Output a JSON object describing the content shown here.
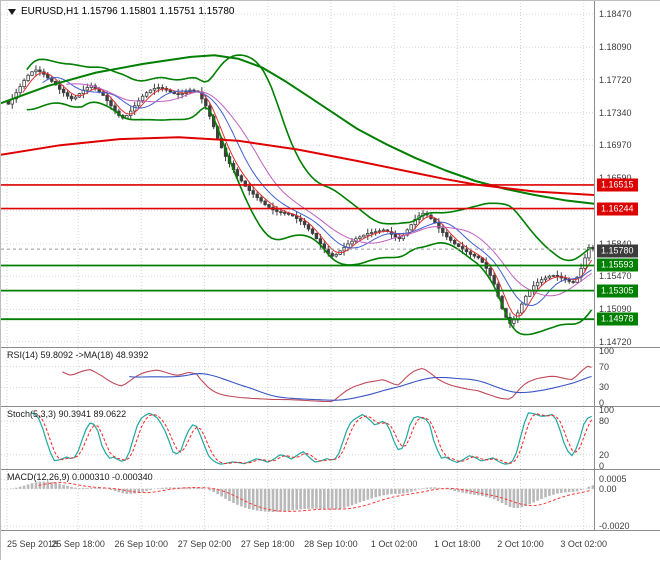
{
  "window": {
    "title": "EURUSD,H1 1.15796 1.15801 1.15751 1.15780"
  },
  "chart_data": {
    "type": "candlestick",
    "symbol": "EURUSD",
    "timeframe": "H1",
    "ohlc_header": {
      "open": "1.15796",
      "high": "1.15801",
      "low": "1.15751",
      "close": "1.15780"
    },
    "closes": [
      1.1744,
      1.175,
      1.1757,
      1.1764,
      1.1771,
      1.1777,
      1.1781,
      1.1783,
      1.1781,
      1.1778,
      1.1774,
      1.177,
      1.1766,
      1.1761,
      1.1757,
      1.1753,
      1.175,
      1.1752,
      1.1756,
      1.176,
      1.1763,
      1.1765,
      1.1762,
      1.1758,
      1.1754,
      1.1748,
      1.1742,
      1.1736,
      1.1731,
      1.1728,
      1.1731,
      1.1736,
      1.1742,
      1.1748,
      1.1753,
      1.1757,
      1.176,
      1.1762,
      1.1763,
      1.1762,
      1.176,
      1.1758,
      1.1756,
      1.1755,
      1.1756,
      1.1758,
      1.176,
      1.1759,
      1.1758,
      1.175,
      1.1742,
      1.173,
      1.1718,
      1.1705,
      1.1694,
      1.1684,
      1.1676,
      1.1669,
      1.1662,
      1.1656,
      1.165,
      1.1645,
      1.1641,
      1.1637,
      1.1633,
      1.1629,
      1.1626,
      1.1623,
      1.1621,
      1.162,
      1.1619,
      1.1618,
      1.1616,
      1.1613,
      1.161,
      1.1606,
      1.1601,
      1.1596,
      1.159,
      1.1584,
      1.1578,
      1.1573,
      1.157,
      1.1572,
      1.1576,
      1.158,
      1.1584,
      1.1587,
      1.159,
      1.1592,
      1.1594,
      1.1596,
      1.1597,
      1.1598,
      1.1599,
      1.16,
      1.1598,
      1.1595,
      1.1592,
      1.159,
      1.1594,
      1.16,
      1.1606,
      1.1612,
      1.1616,
      1.1619,
      1.1617,
      1.1613,
      1.1608,
      1.1602,
      1.1597,
      1.1592,
      1.1588,
      1.1584,
      1.1581,
      1.1578,
      1.1575,
      1.1572,
      1.157,
      1.1568,
      1.1563,
      1.1556,
      1.1548,
      1.1538,
      1.1524,
      1.151,
      1.15,
      1.1493,
      1.1497,
      1.1505,
      1.1515,
      1.1524,
      1.1531,
      1.1536,
      1.154,
      1.1543,
      1.1545,
      1.1547,
      1.1548,
      1.1547,
      1.1545,
      1.1543,
      1.1541,
      1.154,
      1.1546,
      1.1556,
      1.1568,
      1.158,
      1.1578
    ],
    "x_tick_labels": [
      {
        "text": "25 Sep 2018",
        "index": 0
      },
      {
        "text": "25 Sep 18:00",
        "index": 18
      },
      {
        "text": "26 Sep 10:00",
        "index": 34
      },
      {
        "text": "27 Sep 02:00",
        "index": 50
      },
      {
        "text": "27 Sep 18:00",
        "index": 66
      },
      {
        "text": "28 Sep 10:00",
        "index": 82
      },
      {
        "text": "1 Oct 02:00",
        "index": 98
      },
      {
        "text": "1 Oct 18:00",
        "index": 114
      },
      {
        "text": "2 Oct 10:00",
        "index": 130
      },
      {
        "text": "3 Oct 02:00",
        "index": 146
      }
    ],
    "y_axis": {
      "min": 1.1466,
      "max": 1.1862,
      "ticks": [
        "1.18470",
        "1.18090",
        "1.17720",
        "1.17340",
        "1.16970",
        "1.16590",
        "1.16220",
        "1.15840",
        "1.15470",
        "1.15090",
        "1.14720"
      ]
    },
    "levels": {
      "resistance": [
        "1.16515",
        "1.16244"
      ],
      "support": [
        "1.15593",
        "1.15305",
        "1.14978"
      ],
      "current_price": "1.15780"
    },
    "overlays": {
      "bollinger": {
        "period": 20,
        "deviation": 2
      },
      "ma_ribbon_periods": [
        5,
        10,
        16
      ],
      "green_trend": [
        [
          0,
          1.1745
        ],
        [
          0.08,
          1.1765
        ],
        [
          0.16,
          1.178
        ],
        [
          0.24,
          1.179
        ],
        [
          0.32,
          1.1798
        ],
        [
          0.36,
          1.18
        ],
        [
          0.4,
          1.1796
        ],
        [
          0.44,
          1.1786
        ],
        [
          0.48,
          1.177
        ],
        [
          0.52,
          1.1752
        ],
        [
          0.56,
          1.1734
        ],
        [
          0.6,
          1.1716
        ],
        [
          0.65,
          1.1698
        ],
        [
          0.7,
          1.1682
        ],
        [
          0.75,
          1.1668
        ],
        [
          0.8,
          1.1656
        ],
        [
          0.85,
          1.1647
        ],
        [
          0.9,
          1.164
        ],
        [
          0.95,
          1.1634
        ],
        [
          1,
          1.163
        ]
      ],
      "red_trend": [
        [
          0,
          1.1686
        ],
        [
          0.1,
          1.1697
        ],
        [
          0.2,
          1.1704
        ],
        [
          0.3,
          1.1706
        ],
        [
          0.4,
          1.1702
        ],
        [
          0.5,
          1.1692
        ],
        [
          0.6,
          1.1679
        ],
        [
          0.7,
          1.1665
        ],
        [
          0.75,
          1.1658
        ],
        [
          0.8,
          1.1652
        ],
        [
          0.85,
          1.1648
        ],
        [
          0.9,
          1.1644
        ],
        [
          0.95,
          1.1642
        ],
        [
          1,
          1.164
        ]
      ]
    },
    "indicators": [
      {
        "id": "rsi",
        "title": "RSI(14) 59.8092 ->MA(18) 48.9392",
        "period": 14,
        "ma_period": 18,
        "levels": [
          70,
          30
        ],
        "axis_ticks": [
          "100",
          "70",
          "30",
          "0"
        ]
      },
      {
        "id": "stoch",
        "title": "Stoch(5,3,3) 90.3941 89.0622",
        "k": 5,
        "d": 3,
        "slowing": 3,
        "levels": [
          80,
          20
        ],
        "axis_ticks": [
          "100",
          "80",
          "20",
          "0"
        ]
      },
      {
        "id": "macd",
        "title": "MACD(12,26,9) 0.000310 -0.000340",
        "fast": 12,
        "slow": 26,
        "signal": 9,
        "axis_ticks": [
          "0.0005",
          "0.00",
          "-0.0020"
        ]
      }
    ]
  },
  "colors": {
    "background": "#ffffff",
    "grid": "#d6d6d6",
    "candle": "#3f3f3f",
    "bull_fill": "#ffffff",
    "bollinger": "#007f00",
    "trend_green": "#007f00",
    "trend_red": "#e00000",
    "resistance": "#dd0000",
    "support": "#008000",
    "current_label_bg": "#3c3c3c",
    "ribbon": [
      "#e03030",
      "#4060d0",
      "#c060c0"
    ],
    "rsi_line": "#c04a5a",
    "rsi_ma": "#3a56c4",
    "stoch_main": "#1fa8a0",
    "stoch_signal": "#ff2020",
    "macd_hist": "#b9b9b9",
    "macd_signal": "#ff3b3b",
    "divider": "#8c8c8c",
    "axis_text": "#3c3c3c"
  }
}
